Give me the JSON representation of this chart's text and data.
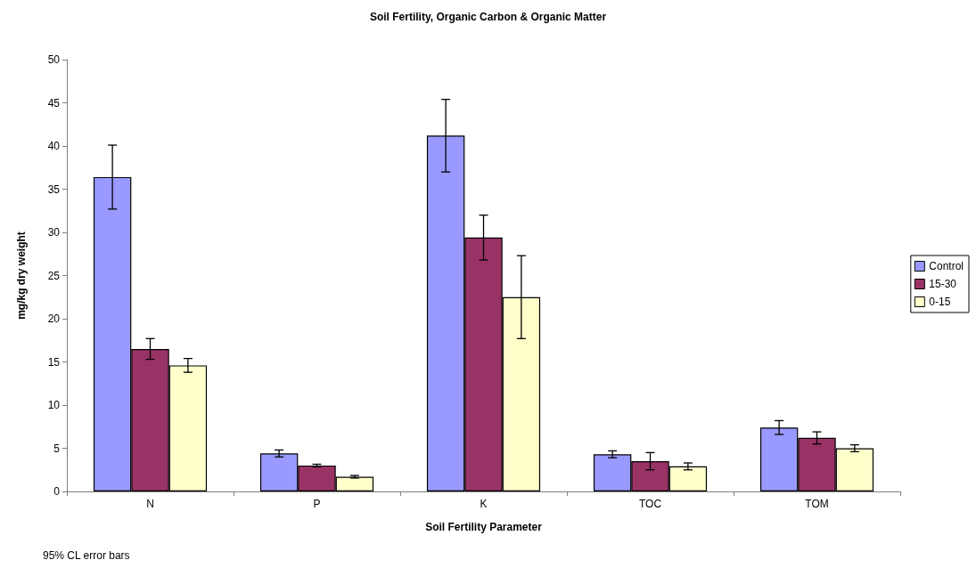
{
  "chart_data": {
    "type": "bar",
    "title": "Soil Fertility, Organic Carbon & Organic Matter",
    "xlabel": "Soil Fertility Parameter",
    "ylabel": "mg/kg dry weight",
    "annotations": [
      "95% CL error bars"
    ],
    "categories": [
      "N",
      "P",
      "K",
      "TOC",
      "TOM"
    ],
    "series": [
      {
        "name": "Control",
        "color": "#9999ff",
        "values": [
          36.4,
          4.4,
          41.2,
          4.3,
          7.4
        ],
        "errors": [
          3.7,
          0.4,
          4.2,
          0.4,
          0.8
        ]
      },
      {
        "name": "15-30",
        "color": "#993366",
        "values": [
          16.5,
          3.0,
          29.4,
          3.5,
          6.2
        ],
        "errors": [
          1.2,
          0.15,
          2.6,
          1.0,
          0.7
        ]
      },
      {
        "name": "0-15",
        "color": "#ffffcc",
        "values": [
          14.6,
          1.7,
          22.5,
          2.9,
          5.0
        ],
        "errors": [
          0.8,
          0.15,
          4.8,
          0.4,
          0.4
        ]
      }
    ],
    "ylim": [
      0,
      50
    ],
    "yticks": [
      0,
      5,
      10,
      15,
      20,
      25,
      30,
      35,
      40,
      45,
      50
    ],
    "grid": false,
    "legend": "right"
  }
}
